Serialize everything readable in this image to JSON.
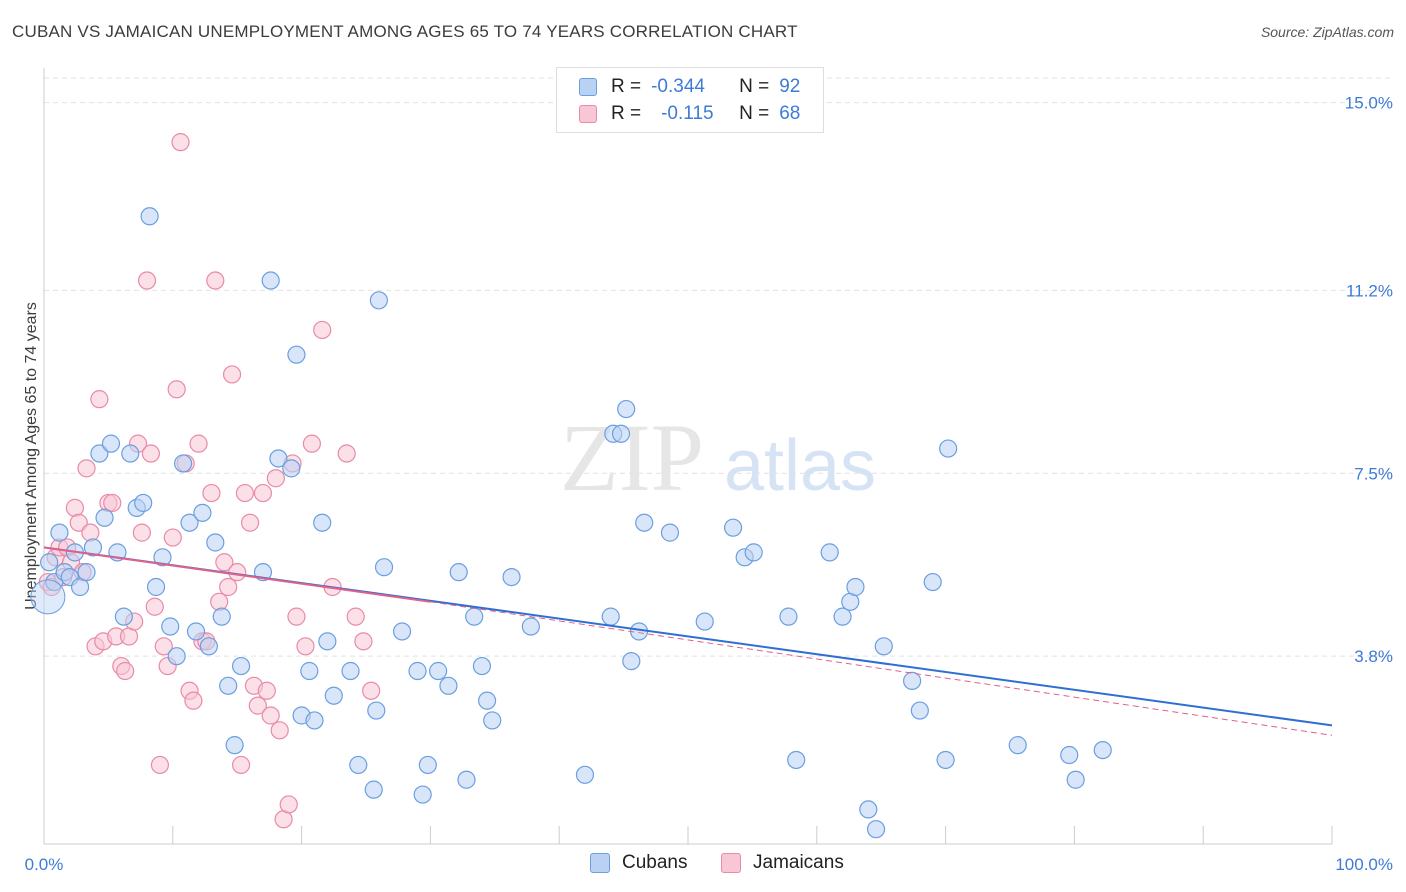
{
  "title": "CUBAN VS JAMAICAN UNEMPLOYMENT AMONG AGES 65 TO 74 YEARS CORRELATION CHART",
  "source": "Source: ZipAtlas.com",
  "legend": {
    "rows": [
      {
        "r_label": "R =",
        "r_value": "-0.344",
        "n_label": "N =",
        "n_value": "92"
      },
      {
        "r_label": "R =",
        "r_value": "-0.115",
        "n_label": "N =",
        "n_value": "68"
      }
    ]
  },
  "bottom_legend": [
    "Cubans",
    "Jamaicans"
  ],
  "watermark": {
    "zip": "ZIP",
    "atlas": "atlas"
  },
  "colors": {
    "cubans_fill": "#b9d2f4",
    "cubans_stroke": "#6a9fe0",
    "cubans_line": "#2f6fd1",
    "jamaicans_fill": "#f8c7d5",
    "jamaicans_stroke": "#e98aa8",
    "jamaicans_line": "#e0608a",
    "grid": "#e2e2e2",
    "tick_text": "#3d7bd6"
  },
  "chart_data": {
    "type": "scatter",
    "title": "CUBAN VS JAMAICAN UNEMPLOYMENT AMONG AGES 65 TO 74 YEARS CORRELATION CHART",
    "xlabel": "",
    "ylabel": "Unemployment Among Ages 65 to 74 years",
    "xlim": [
      0,
      100
    ],
    "ylim": [
      0,
      15.7
    ],
    "x_tick_labels": [
      "0.0%",
      "100.0%"
    ],
    "y_ticks": [
      3.8,
      7.5,
      11.2,
      15.0
    ],
    "y_tick_labels": [
      "3.8%",
      "7.5%",
      "11.2%",
      "15.0%"
    ],
    "grid": true,
    "legend_placement": "top-center",
    "series": [
      {
        "name": "Cubans",
        "r": -0.344,
        "n": 92,
        "trend": {
          "x": [
            0,
            100
          ],
          "y": [
            6.0,
            2.4
          ],
          "style": "solid",
          "dashed_extension": false
        },
        "points": [
          [
            0.4,
            5.7
          ],
          [
            0.8,
            5.3
          ],
          [
            1.2,
            6.3
          ],
          [
            1.6,
            5.5
          ],
          [
            2.0,
            5.4
          ],
          [
            2.4,
            5.9
          ],
          [
            2.8,
            5.2
          ],
          [
            3.3,
            5.5
          ],
          [
            3.8,
            6.0
          ],
          [
            4.3,
            7.9
          ],
          [
            4.7,
            6.6
          ],
          [
            5.2,
            8.1
          ],
          [
            5.7,
            5.9
          ],
          [
            6.2,
            4.6
          ],
          [
            6.7,
            7.9
          ],
          [
            7.2,
            6.8
          ],
          [
            7.7,
            6.9
          ],
          [
            8.2,
            12.7
          ],
          [
            8.7,
            5.2
          ],
          [
            9.2,
            5.8
          ],
          [
            9.8,
            4.4
          ],
          [
            10.3,
            3.8
          ],
          [
            10.8,
            7.7
          ],
          [
            11.3,
            6.5
          ],
          [
            11.8,
            4.3
          ],
          [
            12.3,
            6.7
          ],
          [
            12.8,
            4.0
          ],
          [
            13.3,
            6.1
          ],
          [
            13.8,
            4.6
          ],
          [
            14.3,
            3.2
          ],
          [
            14.8,
            2.0
          ],
          [
            15.3,
            3.6
          ],
          [
            17.0,
            5.5
          ],
          [
            17.6,
            11.4
          ],
          [
            18.2,
            7.8
          ],
          [
            19.2,
            7.6
          ],
          [
            19.6,
            9.9
          ],
          [
            20.0,
            2.6
          ],
          [
            20.6,
            3.5
          ],
          [
            21.0,
            2.5
          ],
          [
            21.6,
            6.5
          ],
          [
            22.0,
            4.1
          ],
          [
            22.5,
            3.0
          ],
          [
            23.8,
            3.5
          ],
          [
            24.4,
            1.6
          ],
          [
            25.6,
            1.1
          ],
          [
            25.8,
            2.7
          ],
          [
            26.0,
            11.0
          ],
          [
            26.4,
            5.6
          ],
          [
            27.8,
            4.3
          ],
          [
            29.0,
            3.5
          ],
          [
            29.4,
            1.0
          ],
          [
            29.8,
            1.6
          ],
          [
            30.6,
            3.5
          ],
          [
            31.4,
            3.2
          ],
          [
            32.2,
            5.5
          ],
          [
            32.8,
            1.3
          ],
          [
            33.4,
            4.6
          ],
          [
            34.0,
            3.6
          ],
          [
            34.4,
            2.9
          ],
          [
            34.8,
            2.5
          ],
          [
            36.3,
            5.4
          ],
          [
            37.8,
            4.4
          ],
          [
            42.0,
            1.4
          ],
          [
            44.0,
            4.6
          ],
          [
            44.2,
            8.3
          ],
          [
            44.8,
            8.3
          ],
          [
            45.2,
            8.8
          ],
          [
            45.6,
            3.7
          ],
          [
            46.2,
            4.3
          ],
          [
            46.6,
            6.5
          ],
          [
            48.6,
            6.3
          ],
          [
            51.3,
            4.5
          ],
          [
            53.5,
            6.4
          ],
          [
            54.4,
            5.8
          ],
          [
            55.1,
            5.9
          ],
          [
            57.8,
            4.6
          ],
          [
            58.4,
            1.7
          ],
          [
            61.0,
            5.9
          ],
          [
            62.0,
            4.6
          ],
          [
            62.6,
            4.9
          ],
          [
            63.0,
            5.2
          ],
          [
            64.0,
            0.7
          ],
          [
            64.6,
            0.3
          ],
          [
            65.2,
            4.0
          ],
          [
            67.4,
            3.3
          ],
          [
            68.0,
            2.7
          ],
          [
            69.0,
            5.3
          ],
          [
            70.0,
            1.7
          ],
          [
            70.2,
            8.0
          ],
          [
            75.6,
            2.0
          ],
          [
            79.6,
            1.8
          ],
          [
            80.1,
            1.3
          ],
          [
            82.2,
            1.9
          ]
        ]
      },
      {
        "name": "Jamaicans",
        "r": -0.115,
        "n": 68,
        "trend": {
          "x": [
            0,
            30
          ],
          "y": [
            6.0,
            4.9
          ],
          "style": "solid",
          "dashed_extension": {
            "x": [
              30,
              100
            ],
            "y": [
              4.9,
              2.2
            ]
          }
        },
        "points": [
          [
            0.3,
            5.3
          ],
          [
            0.6,
            5.2
          ],
          [
            0.9,
            5.8
          ],
          [
            1.2,
            6.0
          ],
          [
            1.5,
            5.4
          ],
          [
            1.8,
            6.0
          ],
          [
            2.1,
            5.7
          ],
          [
            2.4,
            6.8
          ],
          [
            2.7,
            6.5
          ],
          [
            3.0,
            5.5
          ],
          [
            3.3,
            7.6
          ],
          [
            3.6,
            6.3
          ],
          [
            4.0,
            4.0
          ],
          [
            4.3,
            9.0
          ],
          [
            4.6,
            4.1
          ],
          [
            5.0,
            6.9
          ],
          [
            5.3,
            6.9
          ],
          [
            5.6,
            4.2
          ],
          [
            6.0,
            3.6
          ],
          [
            6.3,
            3.5
          ],
          [
            6.6,
            4.2
          ],
          [
            7.0,
            4.5
          ],
          [
            7.3,
            8.1
          ],
          [
            7.6,
            6.3
          ],
          [
            8.0,
            11.4
          ],
          [
            8.3,
            7.9
          ],
          [
            8.6,
            4.8
          ],
          [
            9.0,
            1.6
          ],
          [
            9.3,
            4.0
          ],
          [
            9.6,
            3.6
          ],
          [
            10.0,
            6.2
          ],
          [
            10.3,
            9.2
          ],
          [
            10.6,
            14.2
          ],
          [
            11.0,
            7.7
          ],
          [
            11.3,
            3.1
          ],
          [
            11.6,
            2.9
          ],
          [
            12.0,
            8.1
          ],
          [
            12.3,
            4.1
          ],
          [
            12.6,
            4.1
          ],
          [
            13.0,
            7.1
          ],
          [
            13.3,
            11.4
          ],
          [
            13.6,
            4.9
          ],
          [
            14.0,
            5.7
          ],
          [
            14.3,
            5.2
          ],
          [
            14.6,
            9.5
          ],
          [
            15.0,
            5.5
          ],
          [
            15.3,
            1.6
          ],
          [
            15.6,
            7.1
          ],
          [
            16.0,
            6.5
          ],
          [
            16.3,
            3.2
          ],
          [
            16.6,
            2.8
          ],
          [
            17.0,
            7.1
          ],
          [
            17.3,
            3.1
          ],
          [
            17.6,
            2.6
          ],
          [
            18.0,
            7.4
          ],
          [
            18.3,
            2.3
          ],
          [
            18.6,
            0.5
          ],
          [
            19.0,
            0.8
          ],
          [
            19.3,
            7.7
          ],
          [
            19.6,
            4.6
          ],
          [
            20.3,
            4.0
          ],
          [
            20.8,
            8.1
          ],
          [
            21.6,
            10.4
          ],
          [
            22.4,
            5.2
          ],
          [
            23.5,
            7.9
          ],
          [
            24.2,
            4.6
          ],
          [
            24.8,
            4.1
          ],
          [
            25.4,
            3.1
          ]
        ]
      }
    ]
  }
}
